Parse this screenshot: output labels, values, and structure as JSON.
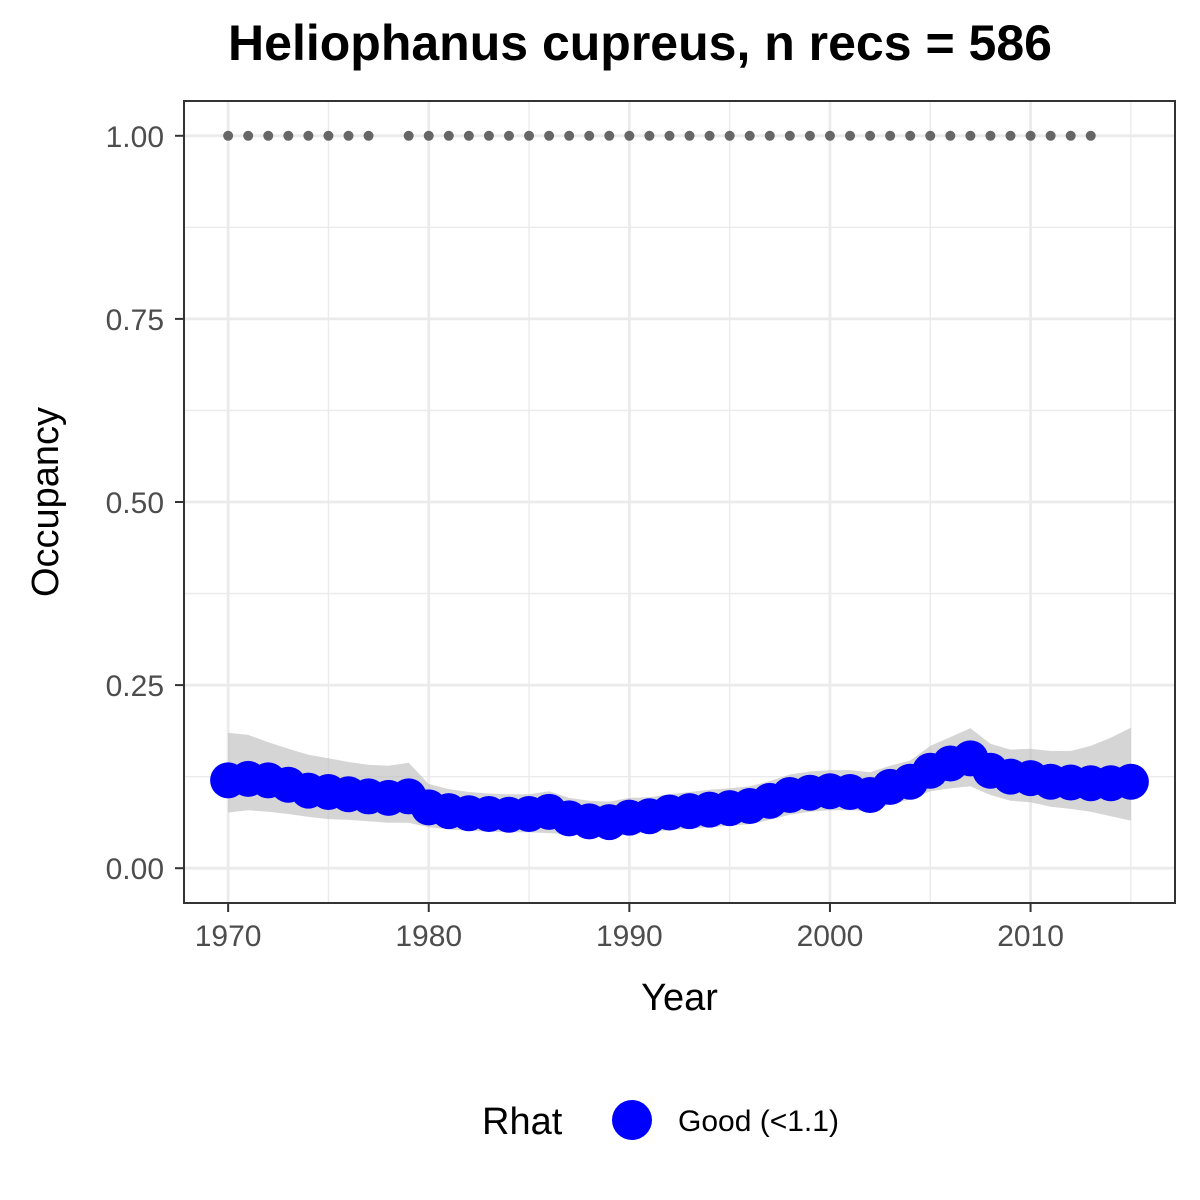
{
  "chart_data": {
    "type": "line",
    "title": "Heliophanus cupreus, n recs = 586",
    "xlabel": "Year",
    "ylabel": "Occupancy",
    "xlim": [
      1967.8,
      2017.2
    ],
    "ylim": [
      -0.0475,
      1.0475
    ],
    "x_ticks": [
      1970,
      1980,
      1990,
      2000,
      2010
    ],
    "x_tick_labels": [
      "1970",
      "1980",
      "1990",
      "2000",
      "2010"
    ],
    "y_ticks": [
      0,
      0.25,
      0.5,
      0.75,
      1.0
    ],
    "y_tick_labels": [
      "0.00",
      "0.25",
      "0.50",
      "0.75",
      "1.00"
    ],
    "grid": true,
    "series": [
      {
        "role": "mean",
        "color": "#0000ff",
        "x": [
          1970,
          1971,
          1972,
          1973,
          1974,
          1975,
          1976,
          1977,
          1978,
          1979,
          1980,
          1981,
          1982,
          1983,
          1984,
          1985,
          1986,
          1987,
          1988,
          1989,
          1990,
          1991,
          1992,
          1993,
          1994,
          1995,
          1996,
          1997,
          1998,
          1999,
          2000,
          2001,
          2002,
          2003,
          2004,
          2005,
          2006,
          2007,
          2008,
          2009,
          2010,
          2011,
          2012,
          2013,
          2014,
          2015
        ],
        "y": [
          0.12,
          0.122,
          0.12,
          0.114,
          0.106,
          0.104,
          0.101,
          0.098,
          0.096,
          0.098,
          0.083,
          0.078,
          0.075,
          0.074,
          0.073,
          0.074,
          0.077,
          0.068,
          0.064,
          0.063,
          0.069,
          0.071,
          0.076,
          0.078,
          0.08,
          0.082,
          0.085,
          0.092,
          0.1,
          0.103,
          0.105,
          0.104,
          0.1,
          0.111,
          0.118,
          0.133,
          0.143,
          0.15,
          0.133,
          0.125,
          0.123,
          0.118,
          0.117,
          0.116,
          0.116,
          0.118
        ],
        "lower": [
          0.076,
          0.079,
          0.077,
          0.074,
          0.07,
          0.067,
          0.066,
          0.064,
          0.062,
          0.062,
          0.056,
          0.053,
          0.051,
          0.05,
          0.049,
          0.049,
          0.048,
          0.046,
          0.044,
          0.043,
          0.046,
          0.049,
          0.052,
          0.054,
          0.056,
          0.058,
          0.06,
          0.066,
          0.073,
          0.077,
          0.079,
          0.079,
          0.078,
          0.087,
          0.094,
          0.105,
          0.109,
          0.112,
          0.1,
          0.092,
          0.09,
          0.084,
          0.081,
          0.077,
          0.071,
          0.065
        ],
        "upper": [
          0.185,
          0.182,
          0.172,
          0.163,
          0.155,
          0.15,
          0.145,
          0.141,
          0.14,
          0.144,
          0.115,
          0.108,
          0.104,
          0.102,
          0.101,
          0.101,
          0.105,
          0.096,
          0.092,
          0.091,
          0.096,
          0.097,
          0.101,
          0.104,
          0.107,
          0.109,
          0.112,
          0.119,
          0.128,
          0.132,
          0.134,
          0.134,
          0.131,
          0.14,
          0.147,
          0.167,
          0.179,
          0.191,
          0.17,
          0.162,
          0.163,
          0.16,
          0.16,
          0.167,
          0.178,
          0.192
        ]
      },
      {
        "role": "records",
        "color": "#666666",
        "x": [
          1970,
          1971,
          1972,
          1973,
          1974,
          1975,
          1976,
          1977,
          1979,
          1980,
          1981,
          1982,
          1983,
          1984,
          1985,
          1986,
          1987,
          1988,
          1989,
          1990,
          1991,
          1992,
          1993,
          1994,
          1995,
          1996,
          1997,
          1998,
          1999,
          2000,
          2001,
          2002,
          2003,
          2004,
          2005,
          2006,
          2007,
          2008,
          2009,
          2010,
          2011,
          2012,
          2013
        ],
        "y": 1.0
      }
    ],
    "legend": {
      "position": "bottom",
      "title": "Rhat",
      "entries": [
        {
          "label": "Good (<1.1)",
          "color": "#0000ff"
        }
      ]
    }
  }
}
